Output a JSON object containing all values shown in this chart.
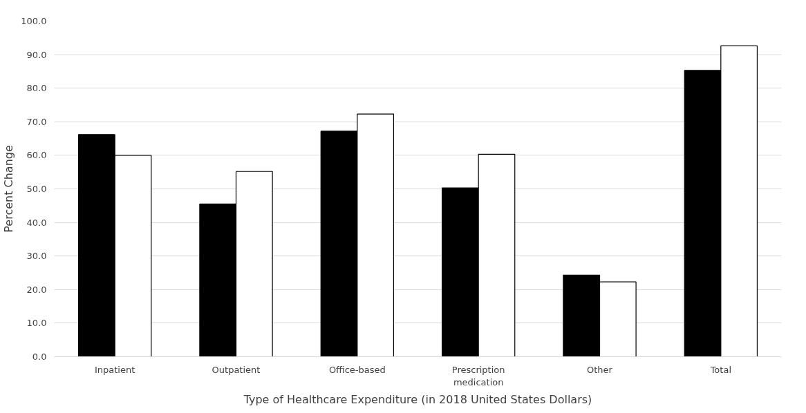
{
  "chart_data": {
    "type": "bar",
    "xlabel": "Type of Healthcare Expenditure (in 2018 United States Dollars)",
    "ylabel": "Percent Change",
    "categories": [
      "Inpatient",
      "Outpatient",
      "Office-based",
      "Prescription medication",
      "Other",
      "Total"
    ],
    "series": [
      {
        "color": "#000000",
        "values": [
          66.2,
          45.5,
          67.2,
          50.3,
          24.3,
          85.3
        ]
      },
      {
        "color": "#ffffff",
        "values": [
          60.0,
          55.2,
          72.3,
          60.3,
          22.3,
          92.6
        ]
      }
    ],
    "ylim": [
      0,
      100
    ],
    "yticks": [
      {
        "value": 0,
        "label": "0.0"
      },
      {
        "value": 10,
        "label": "10.0"
      },
      {
        "value": 20,
        "label": "20.0"
      },
      {
        "value": 30,
        "label": "30.0"
      },
      {
        "value": 40,
        "label": "40.0"
      },
      {
        "value": 50,
        "label": "50.0"
      },
      {
        "value": 60,
        "label": "60.0"
      },
      {
        "value": 70,
        "label": "70.0"
      },
      {
        "value": 80,
        "label": "80.0"
      },
      {
        "value": 90,
        "label": "90.0"
      },
      {
        "value": 100,
        "label": "100.0"
      }
    ],
    "grid": "y"
  }
}
